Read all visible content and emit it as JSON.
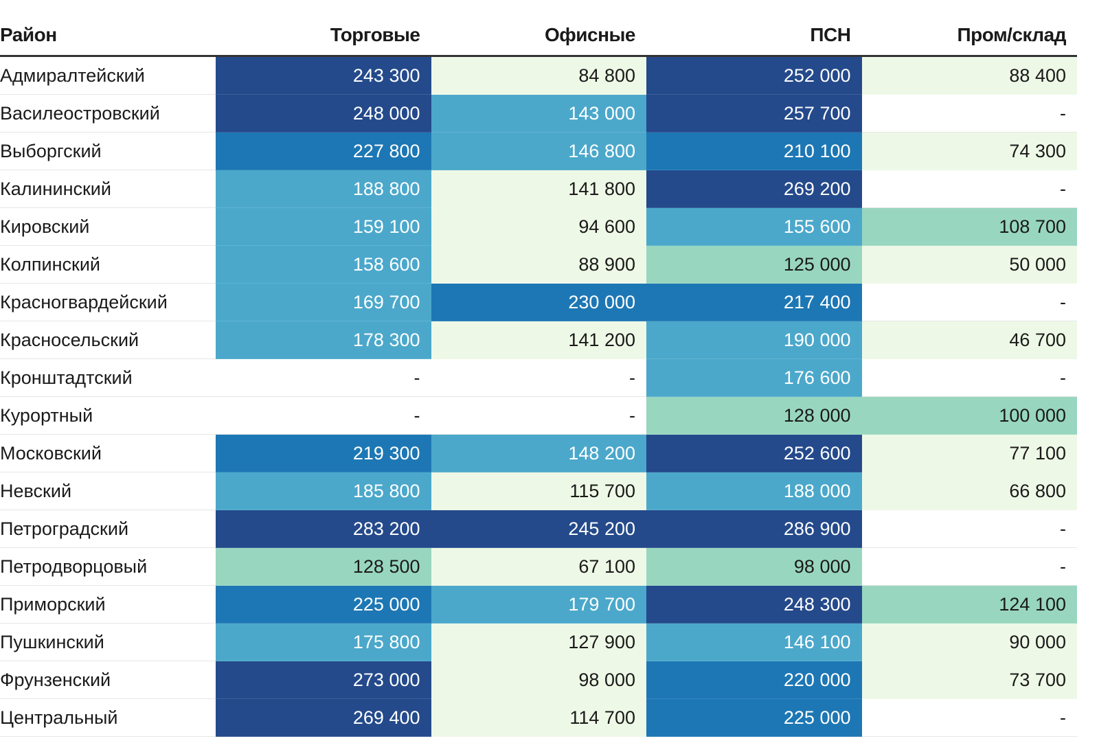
{
  "chart_data": {
    "type": "table",
    "columns": [
      "Район",
      "Торговые",
      "Офисные",
      "ПСН",
      "Пром/склад"
    ],
    "rows": [
      {
        "name": "Адмиралтейский",
        "values": [
          "243 300",
          "84 800",
          "252 000",
          "88 400"
        ],
        "levels": [
          4,
          1,
          4,
          1
        ]
      },
      {
        "name": "Василеостровский",
        "values": [
          "248 000",
          "143 000",
          "257 700",
          "-"
        ],
        "levels": [
          4,
          2,
          4,
          0
        ]
      },
      {
        "name": "Выборгский",
        "values": [
          "227 800",
          "146 800",
          "210 100",
          "74 300"
        ],
        "levels": [
          3,
          2,
          3,
          1
        ]
      },
      {
        "name": "Калининский",
        "values": [
          "188 800",
          "141 800",
          "269 200",
          "-"
        ],
        "levels": [
          2,
          1,
          4,
          0
        ]
      },
      {
        "name": "Кировский",
        "values": [
          "159 100",
          "94 600",
          "155 600",
          "108 700"
        ],
        "levels": [
          2,
          1,
          2,
          2
        ]
      },
      {
        "name": "Колпинский",
        "values": [
          "158 600",
          "88 900",
          "125 000",
          "50 000"
        ],
        "levels": [
          2,
          1,
          1,
          1
        ]
      },
      {
        "name": "Красногвардейский",
        "values": [
          "169 700",
          "230 000",
          "217 400",
          "-"
        ],
        "levels": [
          2,
          3,
          3,
          0
        ]
      },
      {
        "name": "Красносельский",
        "values": [
          "178 300",
          "141 200",
          "190 000",
          "46 700"
        ],
        "levels": [
          2,
          1,
          2,
          1
        ]
      },
      {
        "name": "Кронштадтский",
        "values": [
          "-",
          "-",
          "176 600",
          "-"
        ],
        "levels": [
          0,
          0,
          2,
          0
        ]
      },
      {
        "name": "Курортный",
        "values": [
          "-",
          "-",
          "128 000",
          "100 000"
        ],
        "levels": [
          0,
          0,
          1,
          2
        ]
      },
      {
        "name": "Московский",
        "values": [
          "219 300",
          "148 200",
          "252 600",
          "77 100"
        ],
        "levels": [
          3,
          2,
          4,
          1
        ]
      },
      {
        "name": "Невский",
        "values": [
          "185 800",
          "115 700",
          "188 000",
          "66 800"
        ],
        "levels": [
          2,
          1,
          2,
          1
        ]
      },
      {
        "name": "Петроградский",
        "values": [
          "283 200",
          "245 200",
          "286 900",
          "-"
        ],
        "levels": [
          4,
          4,
          4,
          0
        ]
      },
      {
        "name": "Петродворцовый",
        "values": [
          "128 500",
          "67 100",
          "98 000",
          "-"
        ],
        "levels": [
          1,
          1,
          1,
          0
        ]
      },
      {
        "name": "Приморский",
        "values": [
          "225 000",
          "179 700",
          "248 300",
          "124 100"
        ],
        "levels": [
          3,
          2,
          4,
          2
        ]
      },
      {
        "name": "Пушкинский",
        "values": [
          "175 800",
          "127 900",
          "146 100",
          "90 000"
        ],
        "levels": [
          2,
          1,
          2,
          1
        ]
      },
      {
        "name": "Фрунзенский",
        "values": [
          "273 000",
          "98 000",
          "220 000",
          "73 700"
        ],
        "levels": [
          4,
          1,
          3,
          1
        ]
      },
      {
        "name": "Центральный",
        "values": [
          "269 400",
          "114 700",
          "225 000",
          "-"
        ],
        "levels": [
          4,
          1,
          3,
          0
        ]
      }
    ]
  },
  "colors": {
    "by_column_level": [
      [
        "#ffffff",
        "#98d6c0",
        "#4ba8cb",
        "#1d77b4",
        "#244a8b"
      ],
      [
        "#ffffff",
        "#eef8e6",
        "#4ba8cb",
        "#1d77b4",
        "#244a8b"
      ],
      [
        "#ffffff",
        "#98d6c0",
        "#4ba8cb",
        "#1d77b4",
        "#244a8b"
      ],
      [
        "#ffffff",
        "#eef8e6",
        "#98d6c0",
        "#4ba8cb",
        "#244a8b"
      ]
    ],
    "light_text": "#ffffff",
    "dark_text": "#1a1a1a"
  }
}
